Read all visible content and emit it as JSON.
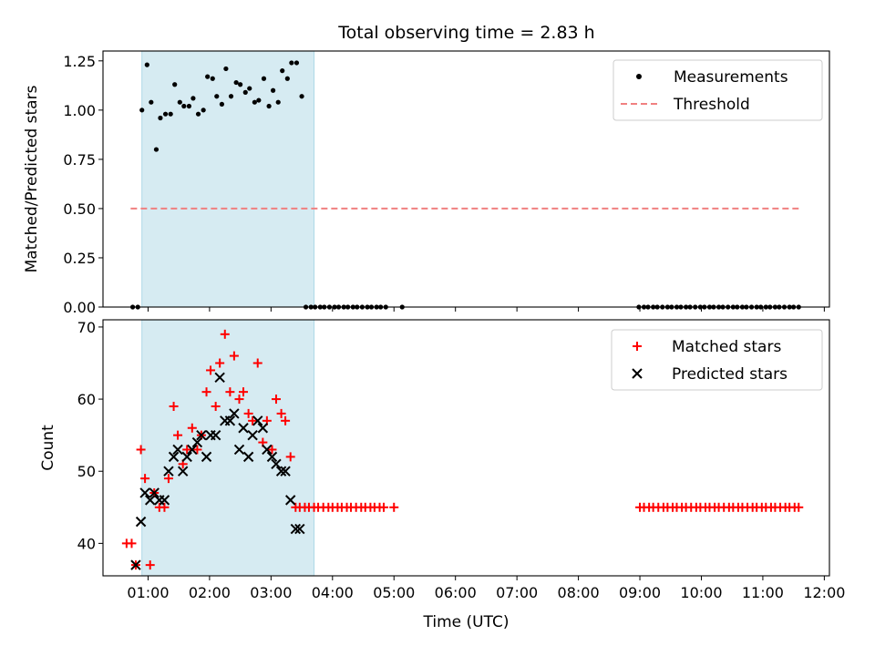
{
  "title": "Total observing time = 2.83 h",
  "colors": {
    "shade": "#add8e6",
    "measurement": "#000000",
    "threshold": "#f08080",
    "matched": "#ff0000",
    "predicted": "#000000"
  },
  "chart_data": [
    {
      "type": "scatter",
      "title": "Total observing time = 2.83 h",
      "xlabel": "",
      "ylabel": "Matched/Predicted stars",
      "ylim": [
        0.0,
        1.3
      ],
      "yticks": [
        "0.00",
        "0.25",
        "0.50",
        "0.75",
        "1.00",
        "1.25"
      ],
      "xlim": [
        "00:16",
        "12:05"
      ],
      "shaded_span": [
        "00:54",
        "03:42"
      ],
      "legend_position": "top-right",
      "legend": [
        "Measurements",
        "Threshold"
      ],
      "threshold": {
        "name": "Threshold",
        "y": 0.5,
        "x_range": [
          "00:43",
          "11:35"
        ],
        "style": "dashed"
      },
      "series": [
        {
          "name": "Measurements",
          "marker": "dot",
          "points": [
            [
              "00:45",
              0.0
            ],
            [
              "00:50",
              0.0
            ],
            [
              "00:54",
              1.0
            ],
            [
              "00:59",
              1.23
            ],
            [
              "01:03",
              1.04
            ],
            [
              "01:08",
              0.8
            ],
            [
              "01:12",
              0.96
            ],
            [
              "01:17",
              0.98
            ],
            [
              "01:22",
              0.98
            ],
            [
              "01:26",
              1.13
            ],
            [
              "01:31",
              1.04
            ],
            [
              "01:35",
              1.02
            ],
            [
              "01:40",
              1.02
            ],
            [
              "01:44",
              1.06
            ],
            [
              "01:49",
              0.98
            ],
            [
              "01:54",
              1.0
            ],
            [
              "01:58",
              1.17
            ],
            [
              "02:03",
              1.16
            ],
            [
              "02:07",
              1.07
            ],
            [
              "02:12",
              1.03
            ],
            [
              "02:16",
              1.21
            ],
            [
              "02:21",
              1.07
            ],
            [
              "02:26",
              1.14
            ],
            [
              "02:30",
              1.13
            ],
            [
              "02:35",
              1.09
            ],
            [
              "02:39",
              1.11
            ],
            [
              "02:44",
              1.04
            ],
            [
              "02:48",
              1.05
            ],
            [
              "02:53",
              1.16
            ],
            [
              "02:58",
              1.02
            ],
            [
              "03:02",
              1.1
            ],
            [
              "03:07",
              1.04
            ],
            [
              "03:11",
              1.2
            ],
            [
              "03:16",
              1.16
            ],
            [
              "03:20",
              1.24
            ],
            [
              "03:25",
              1.24
            ],
            [
              "03:30",
              1.07
            ],
            [
              "03:34",
              0.0
            ],
            [
              "03:39",
              0.0
            ],
            [
              "03:43",
              0.0
            ],
            [
              "03:48",
              0.0
            ],
            [
              "03:52",
              0.0
            ],
            [
              "03:57",
              0.0
            ],
            [
              "04:02",
              0.0
            ],
            [
              "04:06",
              0.0
            ],
            [
              "04:11",
              0.0
            ],
            [
              "04:15",
              0.0
            ],
            [
              "04:20",
              0.0
            ],
            [
              "04:24",
              0.0
            ],
            [
              "04:29",
              0.0
            ],
            [
              "04:34",
              0.0
            ],
            [
              "04:38",
              0.0
            ],
            [
              "04:43",
              0.0
            ],
            [
              "04:47",
              0.0
            ],
            [
              "04:52",
              0.0
            ],
            [
              "05:08",
              0.0
            ],
            [
              "08:59",
              0.0
            ],
            [
              "09:04",
              0.0
            ],
            [
              "09:08",
              0.0
            ],
            [
              "09:13",
              0.0
            ],
            [
              "09:17",
              0.0
            ],
            [
              "09:22",
              0.0
            ],
            [
              "09:27",
              0.0
            ],
            [
              "09:31",
              0.0
            ],
            [
              "09:36",
              0.0
            ],
            [
              "09:40",
              0.0
            ],
            [
              "09:45",
              0.0
            ],
            [
              "09:49",
              0.0
            ],
            [
              "09:54",
              0.0
            ],
            [
              "09:59",
              0.0
            ],
            [
              "10:03",
              0.0
            ],
            [
              "10:08",
              0.0
            ],
            [
              "10:12",
              0.0
            ],
            [
              "10:17",
              0.0
            ],
            [
              "10:21",
              0.0
            ],
            [
              "10:26",
              0.0
            ],
            [
              "10:31",
              0.0
            ],
            [
              "10:35",
              0.0
            ],
            [
              "10:40",
              0.0
            ],
            [
              "10:44",
              0.0
            ],
            [
              "10:49",
              0.0
            ],
            [
              "10:54",
              0.0
            ],
            [
              "10:58",
              0.0
            ],
            [
              "11:03",
              0.0
            ],
            [
              "11:07",
              0.0
            ],
            [
              "11:12",
              0.0
            ],
            [
              "11:16",
              0.0
            ],
            [
              "11:21",
              0.0
            ],
            [
              "11:26",
              0.0
            ],
            [
              "11:30",
              0.0
            ],
            [
              "11:35",
              0.0
            ]
          ]
        }
      ]
    },
    {
      "type": "scatter",
      "title": "",
      "xlabel": "Time (UTC)",
      "ylabel": "Count",
      "ylim": [
        35.5,
        71
      ],
      "yticks": [
        "40",
        "50",
        "60",
        "70"
      ],
      "xlim": [
        "00:16",
        "12:05"
      ],
      "xticks": [
        "01:00",
        "02:00",
        "03:00",
        "04:00",
        "05:00",
        "06:00",
        "07:00",
        "08:00",
        "09:00",
        "10:00",
        "11:00",
        "12:00"
      ],
      "shaded_span": [
        "00:54",
        "03:42"
      ],
      "legend_position": "top-right",
      "legend": [
        "Matched stars",
        "Predicted stars"
      ],
      "series": [
        {
          "name": "Matched stars",
          "marker": "plus",
          "points": [
            [
              "00:39",
              40
            ],
            [
              "00:44",
              40
            ],
            [
              "00:48",
              37
            ],
            [
              "00:53",
              53
            ],
            [
              "00:57",
              49
            ],
            [
              "01:02",
              37
            ],
            [
              "01:06",
              47
            ],
            [
              "01:11",
              45
            ],
            [
              "01:16",
              45
            ],
            [
              "01:20",
              49
            ],
            [
              "01:25",
              59
            ],
            [
              "01:29",
              55
            ],
            [
              "01:34",
              51
            ],
            [
              "01:38",
              53
            ],
            [
              "01:43",
              56
            ],
            [
              "01:48",
              53
            ],
            [
              "01:52",
              55
            ],
            [
              "01:57",
              61
            ],
            [
              "02:01",
              64
            ],
            [
              "02:06",
              59
            ],
            [
              "02:10",
              65
            ],
            [
              "02:15",
              69
            ],
            [
              "02:20",
              61
            ],
            [
              "02:24",
              66
            ],
            [
              "02:29",
              60
            ],
            [
              "02:33",
              61
            ],
            [
              "02:38",
              58
            ],
            [
              "02:42",
              57
            ],
            [
              "02:47",
              65
            ],
            [
              "02:52",
              54
            ],
            [
              "02:56",
              57
            ],
            [
              "03:01",
              53
            ],
            [
              "03:05",
              60
            ],
            [
              "03:10",
              58
            ],
            [
              "03:14",
              57
            ],
            [
              "03:19",
              52
            ],
            [
              "03:24",
              45
            ],
            [
              "03:28",
              45
            ],
            [
              "03:33",
              45
            ],
            [
              "03:37",
              45
            ],
            [
              "03:42",
              45
            ],
            [
              "03:46",
              45
            ],
            [
              "03:51",
              45
            ],
            [
              "03:56",
              45
            ],
            [
              "04:00",
              45
            ],
            [
              "04:05",
              45
            ],
            [
              "04:09",
              45
            ],
            [
              "04:14",
              45
            ],
            [
              "04:18",
              45
            ],
            [
              "04:23",
              45
            ],
            [
              "04:28",
              45
            ],
            [
              "04:32",
              45
            ],
            [
              "04:37",
              45
            ],
            [
              "04:41",
              45
            ],
            [
              "04:46",
              45
            ],
            [
              "04:50",
              45
            ],
            [
              "05:00",
              45
            ],
            [
              "09:00",
              45
            ],
            [
              "09:04",
              45
            ],
            [
              "09:09",
              45
            ],
            [
              "09:13",
              45
            ],
            [
              "09:18",
              45
            ],
            [
              "09:23",
              45
            ],
            [
              "09:27",
              45
            ],
            [
              "09:32",
              45
            ],
            [
              "09:36",
              45
            ],
            [
              "09:41",
              45
            ],
            [
              "09:45",
              45
            ],
            [
              "09:50",
              45
            ],
            [
              "09:55",
              45
            ],
            [
              "09:59",
              45
            ],
            [
              "10:04",
              45
            ],
            [
              "10:08",
              45
            ],
            [
              "10:13",
              45
            ],
            [
              "10:17",
              45
            ],
            [
              "10:22",
              45
            ],
            [
              "10:27",
              45
            ],
            [
              "10:31",
              45
            ],
            [
              "10:36",
              45
            ],
            [
              "10:40",
              45
            ],
            [
              "10:45",
              45
            ],
            [
              "10:50",
              45
            ],
            [
              "10:54",
              45
            ],
            [
              "10:59",
              45
            ],
            [
              "11:03",
              45
            ],
            [
              "11:08",
              45
            ],
            [
              "11:12",
              45
            ],
            [
              "11:17",
              45
            ],
            [
              "11:22",
              45
            ],
            [
              "11:26",
              45
            ],
            [
              "11:31",
              45
            ],
            [
              "11:35",
              45
            ]
          ]
        },
        {
          "name": "Predicted stars",
          "marker": "x",
          "points": [
            [
              "00:48",
              37
            ],
            [
              "00:53",
              43
            ],
            [
              "00:57",
              47
            ],
            [
              "01:02",
              46
            ],
            [
              "01:06",
              47
            ],
            [
              "01:11",
              46
            ],
            [
              "01:16",
              46
            ],
            [
              "01:20",
              50
            ],
            [
              "01:25",
              52
            ],
            [
              "01:29",
              53
            ],
            [
              "01:34",
              50
            ],
            [
              "01:38",
              52
            ],
            [
              "01:43",
              53
            ],
            [
              "01:48",
              54
            ],
            [
              "01:52",
              55
            ],
            [
              "01:57",
              52
            ],
            [
              "02:01",
              55
            ],
            [
              "02:06",
              55
            ],
            [
              "02:10",
              63
            ],
            [
              "02:15",
              57
            ],
            [
              "02:20",
              57
            ],
            [
              "02:24",
              58
            ],
            [
              "02:29",
              53
            ],
            [
              "02:33",
              56
            ],
            [
              "02:38",
              52
            ],
            [
              "02:42",
              55
            ],
            [
              "02:47",
              57
            ],
            [
              "02:52",
              56
            ],
            [
              "02:56",
              53
            ],
            [
              "03:01",
              52
            ],
            [
              "03:05",
              51
            ],
            [
              "03:10",
              50
            ],
            [
              "03:14",
              50
            ],
            [
              "03:19",
              46
            ],
            [
              "03:24",
              42
            ],
            [
              "03:28",
              42
            ]
          ]
        }
      ]
    }
  ]
}
